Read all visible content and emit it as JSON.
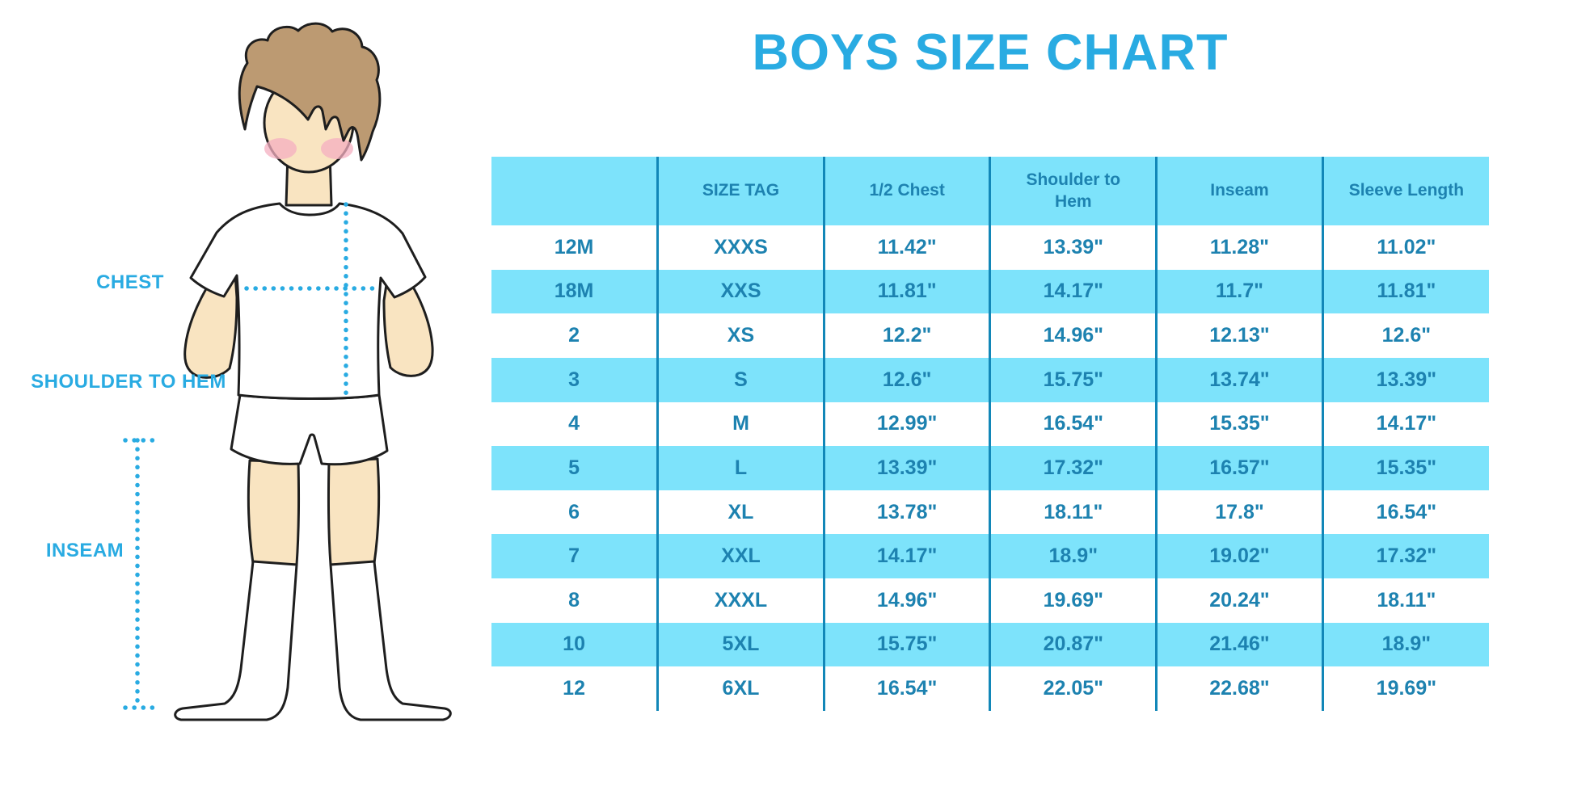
{
  "title": "BOYS SIZE CHART",
  "illustration": {
    "labels": {
      "chest": "CHEST",
      "shoulder_to_hem": "SHOULDER TO HEM",
      "inseam": "INSEAM"
    }
  },
  "chart_data": {
    "type": "table",
    "title": "BOYS SIZE CHART",
    "columns": [
      "",
      "SIZE TAG",
      "1/2 Chest",
      "Shoulder to Hem",
      "Inseam",
      "Sleeve Length"
    ],
    "rows": [
      [
        "12M",
        "XXXS",
        "11.42\"",
        "13.39\"",
        "11.28\"",
        "11.02\""
      ],
      [
        "18M",
        "XXS",
        "11.81\"",
        "14.17\"",
        "11.7\"",
        "11.81\""
      ],
      [
        "2",
        "XS",
        "12.2\"",
        "14.96\"",
        "12.13\"",
        "12.6\""
      ],
      [
        "3",
        "S",
        "12.6\"",
        "15.75\"",
        "13.74\"",
        "13.39\""
      ],
      [
        "4",
        "M",
        "12.99\"",
        "16.54\"",
        "15.35\"",
        "14.17\""
      ],
      [
        "5",
        "L",
        "13.39\"",
        "17.32\"",
        "16.57\"",
        "15.35\""
      ],
      [
        "6",
        "XL",
        "13.78\"",
        "18.11\"",
        "17.8\"",
        "16.54\""
      ],
      [
        "7",
        "XXL",
        "14.17\"",
        "18.9\"",
        "19.02\"",
        "17.32\""
      ],
      [
        "8",
        "XXXL",
        "14.96\"",
        "19.69\"",
        "20.24\"",
        "18.11\""
      ],
      [
        "10",
        "5XL",
        "15.75\"",
        "20.87\"",
        "21.46\"",
        "18.9\""
      ],
      [
        "12",
        "6XL",
        "16.54\"",
        "22.05\"",
        "22.68\"",
        "19.69\""
      ]
    ],
    "layout": {
      "zebra_striping": true,
      "first_data_row": "white",
      "grid": "vertical-only"
    }
  },
  "colors": {
    "accent": "#29ABE2",
    "table_band": "#7DE3FB",
    "table_text": "#1D82B0",
    "separator": "#1287B8",
    "skin": "#F9E4C1",
    "hair": "#BC9A72",
    "cheek": "#F4AFC0"
  }
}
